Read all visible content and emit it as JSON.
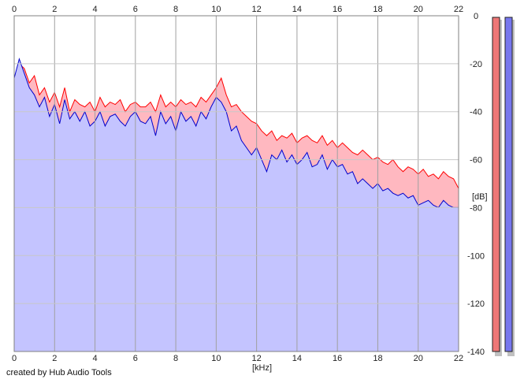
{
  "chart_data": {
    "type": "area",
    "xlabel": "[kHz]",
    "ylabel": "[dB]",
    "xlim": [
      0,
      22
    ],
    "ylim": [
      -140,
      0
    ],
    "x_ticks": [
      0,
      2,
      4,
      6,
      8,
      10,
      12,
      14,
      16,
      18,
      20,
      22
    ],
    "y_ticks": [
      0,
      -20,
      -40,
      -60,
      -80,
      -100,
      -120,
      -140
    ],
    "grid": true,
    "legend": "none",
    "series": [
      {
        "color": "#ff0000",
        "fill": "#ffb8c0",
        "x": [
          0.0,
          0.25,
          0.5,
          0.75,
          1.0,
          1.25,
          1.5,
          1.75,
          2.0,
          2.25,
          2.5,
          2.75,
          3.0,
          3.25,
          3.5,
          3.75,
          4.0,
          4.25,
          4.5,
          4.75,
          5.0,
          5.25,
          5.5,
          5.75,
          6.0,
          6.25,
          6.5,
          6.75,
          7.0,
          7.25,
          7.5,
          7.75,
          8.0,
          8.25,
          8.5,
          8.75,
          9.0,
          9.25,
          9.5,
          9.75,
          10.0,
          10.25,
          10.5,
          10.75,
          11.0,
          11.25,
          11.5,
          11.75,
          12.0,
          12.25,
          12.5,
          12.75,
          13.0,
          13.25,
          13.5,
          13.75,
          14.0,
          14.25,
          14.5,
          14.75,
          15.0,
          15.25,
          15.5,
          15.75,
          16.0,
          16.25,
          16.5,
          16.75,
          17.0,
          17.25,
          17.5,
          17.75,
          18.0,
          18.25,
          18.5,
          18.75,
          19.0,
          19.25,
          19.5,
          19.75,
          20.0,
          20.25,
          20.5,
          20.75,
          21.0,
          21.25,
          21.5,
          21.75,
          22.0
        ],
        "values": [
          -30,
          -20,
          -22,
          -28,
          -25,
          -33,
          -30,
          -36,
          -32,
          -38,
          -30,
          -40,
          -35,
          -37,
          -38,
          -36,
          -40,
          -34,
          -38,
          -36,
          -37,
          -35,
          -40,
          -37,
          -36,
          -38,
          -38,
          -36,
          -40,
          -33,
          -38,
          -36,
          -38,
          -35,
          -37,
          -36,
          -38,
          -34,
          -36,
          -33,
          -30,
          -26,
          -33,
          -38,
          -37,
          -40,
          -42,
          -44,
          -45,
          -48,
          -50,
          -48,
          -52,
          -50,
          -51,
          -49,
          -53,
          -51,
          -50,
          -52,
          -53,
          -50,
          -54,
          -52,
          -55,
          -53,
          -55,
          -57,
          -58,
          -56,
          -58,
          -60,
          -59,
          -61,
          -62,
          -60,
          -63,
          -65,
          -63,
          -64,
          -66,
          -64,
          -67,
          -66,
          -68,
          -65,
          -67,
          -68,
          -72
        ]
      },
      {
        "color": "#0000cc",
        "fill": "#c4c4ff",
        "x": [
          0.0,
          0.25,
          0.5,
          0.75,
          1.0,
          1.25,
          1.5,
          1.75,
          2.0,
          2.25,
          2.5,
          2.75,
          3.0,
          3.25,
          3.5,
          3.75,
          4.0,
          4.25,
          4.5,
          4.75,
          5.0,
          5.25,
          5.5,
          5.75,
          6.0,
          6.25,
          6.5,
          6.75,
          7.0,
          7.25,
          7.5,
          7.75,
          8.0,
          8.25,
          8.5,
          8.75,
          9.0,
          9.25,
          9.5,
          9.75,
          10.0,
          10.25,
          10.5,
          10.75,
          11.0,
          11.25,
          11.5,
          11.75,
          12.0,
          12.25,
          12.5,
          12.75,
          13.0,
          13.25,
          13.5,
          13.75,
          14.0,
          14.25,
          14.5,
          14.75,
          15.0,
          15.25,
          15.5,
          15.75,
          16.0,
          16.25,
          16.5,
          16.75,
          17.0,
          17.25,
          17.5,
          17.75,
          18.0,
          18.25,
          18.5,
          18.75,
          19.0,
          19.25,
          19.5,
          19.75,
          20.0,
          20.25,
          20.5,
          20.75,
          21.0,
          21.25,
          21.5,
          21.75,
          22.0
        ],
        "values": [
          -26,
          -18,
          -24,
          -30,
          -33,
          -38,
          -34,
          -42,
          -37,
          -45,
          -35,
          -43,
          -40,
          -44,
          -40,
          -46,
          -44,
          -40,
          -46,
          -42,
          -41,
          -44,
          -46,
          -42,
          -40,
          -44,
          -45,
          -42,
          -50,
          -40,
          -45,
          -42,
          -48,
          -40,
          -44,
          -42,
          -46,
          -40,
          -43,
          -38,
          -34,
          -36,
          -40,
          -48,
          -46,
          -52,
          -55,
          -58,
          -55,
          -60,
          -65,
          -58,
          -60,
          -56,
          -61,
          -58,
          -62,
          -60,
          -57,
          -63,
          -62,
          -58,
          -64,
          -60,
          -63,
          -62,
          -66,
          -65,
          -70,
          -68,
          -70,
          -72,
          -70,
          -73,
          -72,
          -74,
          -75,
          -74,
          -76,
          -75,
          -79,
          -78,
          -77,
          -79,
          -80,
          -77,
          -79,
          -80,
          -80
        ]
      }
    ],
    "level_meters": [
      {
        "color": "#ee7777",
        "level": 1.0
      },
      {
        "color": "#7777ee",
        "level": 1.0
      }
    ]
  },
  "footer": {
    "credit": "created by Hub Audio Tools"
  },
  "x_axis_tick_labels": [
    "0",
    "2",
    "4",
    "6",
    "8",
    "10",
    "12",
    "14",
    "16",
    "18",
    "20",
    "22"
  ],
  "y_axis_tick_labels": [
    "0",
    "-20",
    "-40",
    "-60",
    "-80",
    "-100",
    "-120",
    "-140"
  ]
}
